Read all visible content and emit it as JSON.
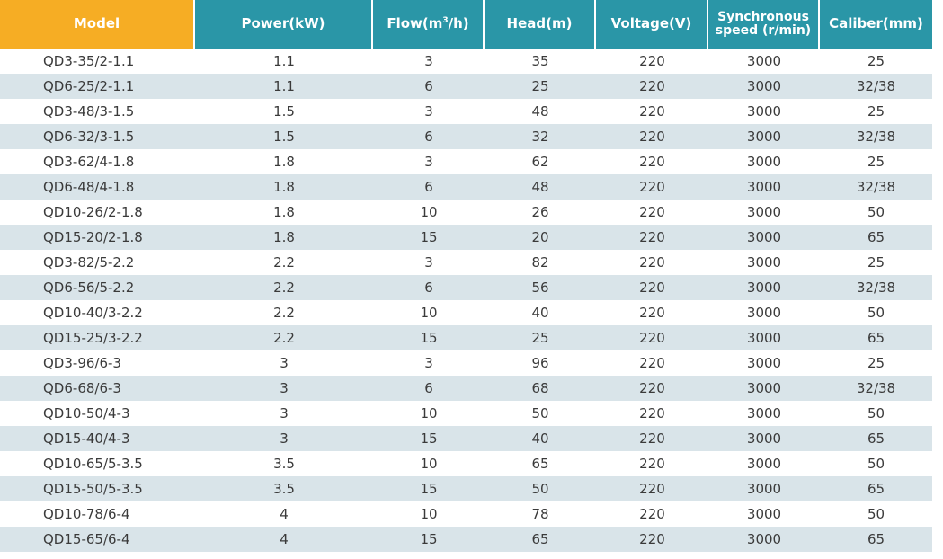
{
  "columns": [
    {
      "key": "model",
      "label": "Model"
    },
    {
      "key": "power",
      "label": "Power(kW)"
    },
    {
      "key": "flow",
      "label": "Flow(m³/h)"
    },
    {
      "key": "head",
      "label": "Head(m)"
    },
    {
      "key": "voltage",
      "label": "Voltage(V)"
    },
    {
      "key": "speed",
      "label": "Synchronous speed (r/min)"
    },
    {
      "key": "caliber",
      "label": "Caliber(mm)"
    }
  ],
  "rows": [
    [
      "QD3-35/2-1.1",
      "1.1",
      "3",
      "35",
      "220",
      "3000",
      "25"
    ],
    [
      "QD6-25/2-1.1",
      "1.1",
      "6",
      "25",
      "220",
      "3000",
      "32/38"
    ],
    [
      "QD3-48/3-1.5",
      "1.5",
      "3",
      "48",
      "220",
      "3000",
      "25"
    ],
    [
      "QD6-32/3-1.5",
      "1.5",
      "6",
      "32",
      "220",
      "3000",
      "32/38"
    ],
    [
      "QD3-62/4-1.8",
      "1.8",
      "3",
      "62",
      "220",
      "3000",
      "25"
    ],
    [
      "QD6-48/4-1.8",
      "1.8",
      "6",
      "48",
      "220",
      "3000",
      "32/38"
    ],
    [
      "QD10-26/2-1.8",
      "1.8",
      "10",
      "26",
      "220",
      "3000",
      "50"
    ],
    [
      "QD15-20/2-1.8",
      "1.8",
      "15",
      "20",
      "220",
      "3000",
      "65"
    ],
    [
      "QD3-82/5-2.2",
      "2.2",
      "3",
      "82",
      "220",
      "3000",
      "25"
    ],
    [
      "QD6-56/5-2.2",
      "2.2",
      "6",
      "56",
      "220",
      "3000",
      "32/38"
    ],
    [
      "QD10-40/3-2.2",
      "2.2",
      "10",
      "40",
      "220",
      "3000",
      "50"
    ],
    [
      "QD15-25/3-2.2",
      "2.2",
      "15",
      "25",
      "220",
      "3000",
      "65"
    ],
    [
      "QD3-96/6-3",
      "3",
      "3",
      "96",
      "220",
      "3000",
      "25"
    ],
    [
      "QD6-68/6-3",
      "3",
      "6",
      "68",
      "220",
      "3000",
      "32/38"
    ],
    [
      "QD10-50/4-3",
      "3",
      "10",
      "50",
      "220",
      "3000",
      "50"
    ],
    [
      "QD15-40/4-3",
      "3",
      "15",
      "40",
      "220",
      "3000",
      "65"
    ],
    [
      "QD10-65/5-3.5",
      "3.5",
      "10",
      "65",
      "220",
      "3000",
      "50"
    ],
    [
      "QD15-50/5-3.5",
      "3.5",
      "15",
      "50",
      "220",
      "3000",
      "65"
    ],
    [
      "QD10-78/6-4",
      "4",
      "10",
      "78",
      "220",
      "3000",
      "50"
    ],
    [
      "QD15-65/6-4",
      "4",
      "15",
      "65",
      "220",
      "3000",
      "65"
    ]
  ],
  "colors": {
    "model_header_bg": "#f6ad24",
    "header_bg": "#2a96a7",
    "stripe_bg": "#d9e4e9",
    "text": "#3a3a3a"
  }
}
